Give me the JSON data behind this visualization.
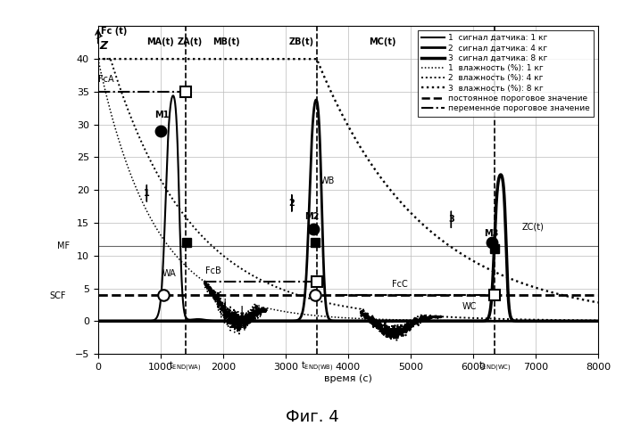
{
  "xlim": [
    0,
    8000
  ],
  "ylim": [
    -5,
    45
  ],
  "xlabel": "время (с)",
  "title": "Фиг. 4",
  "yticks": [
    -5,
    0,
    5,
    10,
    15,
    20,
    25,
    30,
    35,
    40
  ],
  "xticks": [
    0,
    1000,
    2000,
    3000,
    4000,
    5000,
    6000,
    7000,
    8000
  ],
  "scf_level": 4.0,
  "mf_level": 11.5,
  "fca_level": 35.0,
  "fcb_level": 6.0,
  "fcc_level": 4.0,
  "constant_threshold": 4.0,
  "tend_wa": 1400,
  "tend_wb": 3500,
  "tend_wc": 6350,
  "background_color": "#ffffff",
  "grid_color": "#bbbbbb",
  "line_color": "#000000",
  "legend_entries": [
    "1  сигнал датчика: 1 кг",
    "2  сигнал датчика: 4 кг",
    "3  сигнал датчика: 8 кг",
    "1  влажность (%): 1 кг",
    "2  влажность (%): 4 кг",
    "3  влажность (%): 8 кг",
    "постоянное пороговое значение",
    "переменное пороговое значение"
  ]
}
